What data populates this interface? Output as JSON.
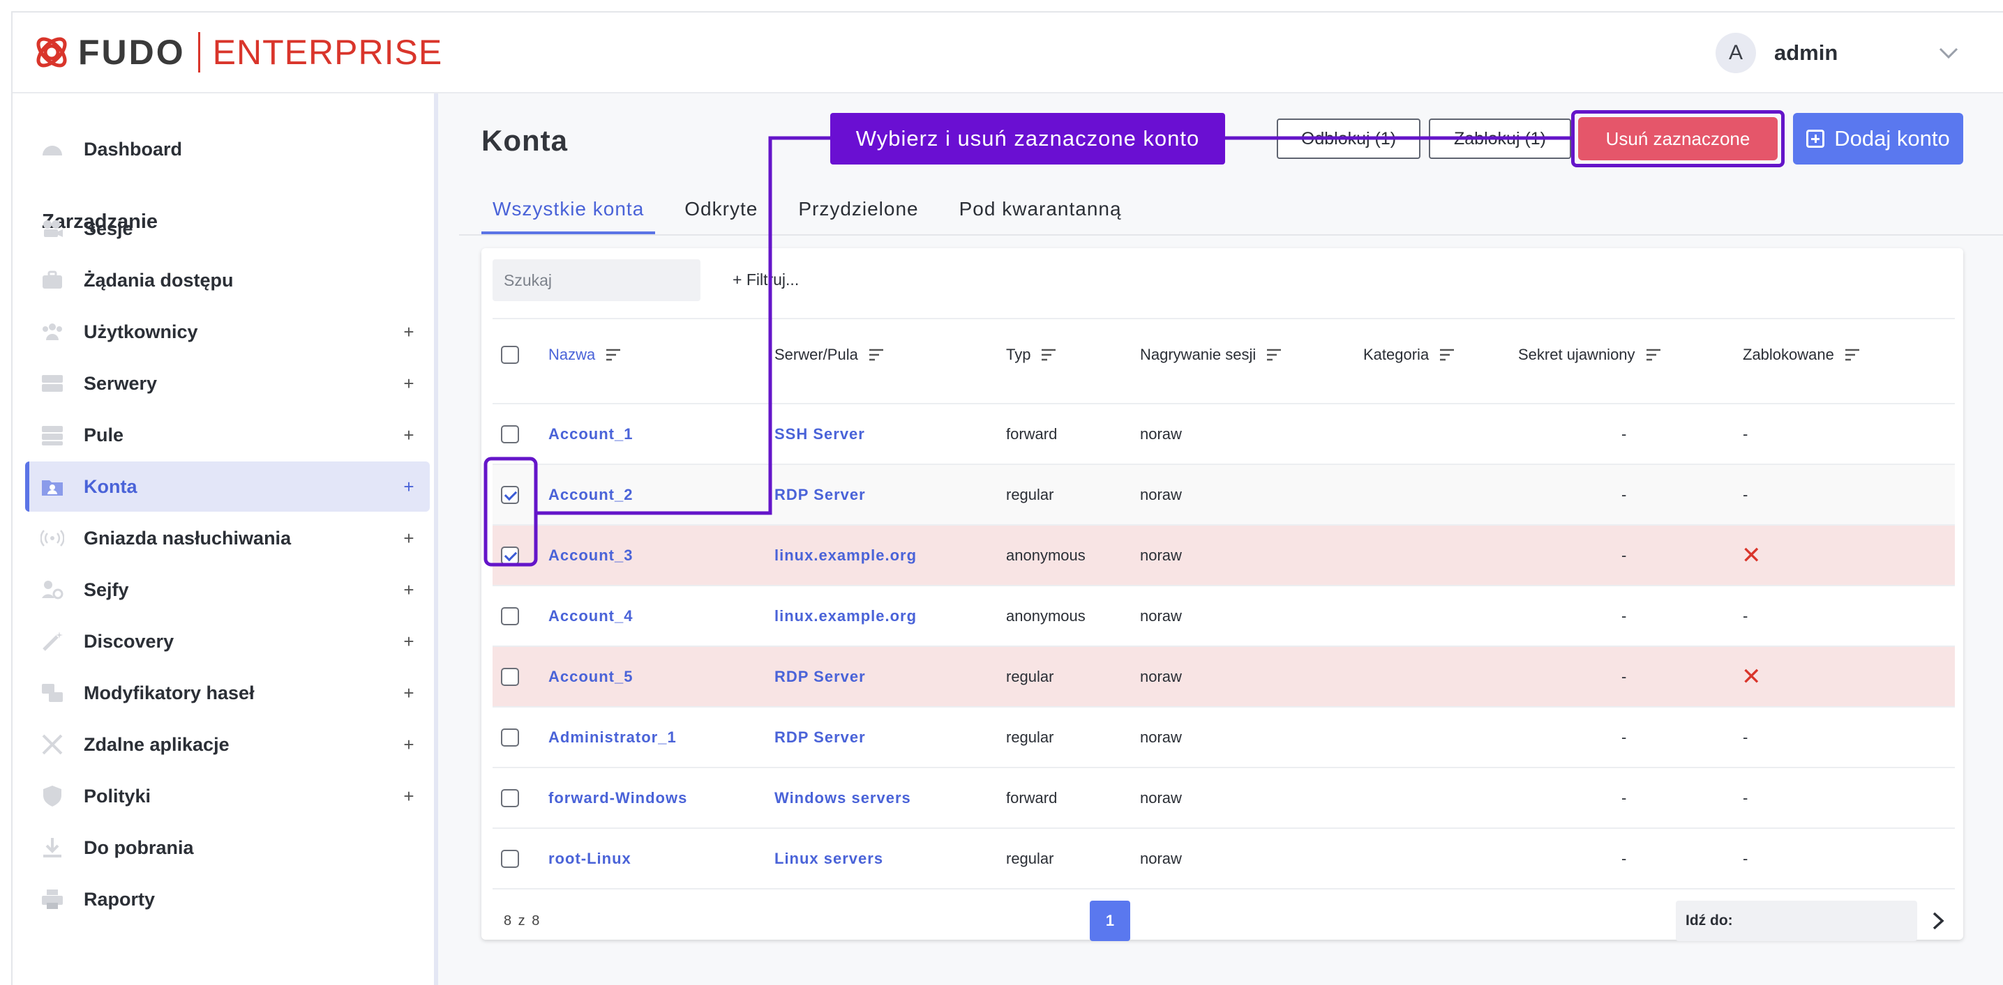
{
  "header": {
    "logo_brand": "FUDO",
    "logo_edition": "ENTERPRISE",
    "user_initial": "A",
    "username": "admin"
  },
  "sidebar": {
    "dashboard": "Dashboard",
    "section_title": "Zarządzanie",
    "items": [
      {
        "label": "Sesje",
        "icon": "camera-icon",
        "plus": ""
      },
      {
        "label": "Żądania dostępu",
        "icon": "briefcase-icon",
        "plus": ""
      },
      {
        "label": "Użytkownicy",
        "icon": "users-icon",
        "plus": "+"
      },
      {
        "label": "Serwery",
        "icon": "server-icon",
        "plus": "+"
      },
      {
        "label": "Pule",
        "icon": "pool-icon",
        "plus": "+"
      },
      {
        "label": "Konta",
        "icon": "account-folder-icon",
        "plus": "+",
        "active": true
      },
      {
        "label": "Gniazda nasłuchiwania",
        "icon": "broadcast-icon",
        "plus": "+"
      },
      {
        "label": "Sejfy",
        "icon": "safe-icon",
        "plus": "+"
      },
      {
        "label": "Discovery",
        "icon": "wand-icon",
        "plus": "+"
      },
      {
        "label": "Modyfikatory haseł",
        "icon": "password-modifier-icon",
        "plus": "+"
      },
      {
        "label": "Zdalne aplikacje",
        "icon": "remote-app-icon",
        "plus": "+"
      },
      {
        "label": "Polityki",
        "icon": "shield-icon",
        "plus": "+"
      },
      {
        "label": "Do pobrania",
        "icon": "download-icon",
        "plus": ""
      },
      {
        "label": "Raporty",
        "icon": "printer-icon",
        "plus": ""
      }
    ]
  },
  "main": {
    "title": "Konta",
    "buttons": {
      "unlock": "Odblokuj (1)",
      "lock": "Zablokuj (1)",
      "delete": "Usuń zaznaczone",
      "add": "Dodaj konto"
    },
    "callout": "Wybierz i usuń zaznaczone konto",
    "tabs": [
      "Wszystkie konta",
      "Odkryte",
      "Przydzielone",
      "Pod kwarantanną"
    ],
    "search_placeholder": "Szukaj",
    "filter_label": "+ Filtruj...",
    "columns": [
      "Nazwa",
      "Serwer/Pula",
      "Typ",
      "Nagrywanie sesji",
      "Kategoria",
      "Sekret ujawniony",
      "Zablokowane"
    ],
    "rows": [
      {
        "name": "Account_1",
        "server": "SSH Server",
        "type": "forward",
        "recording": "noraw",
        "category": "",
        "secret": "-",
        "locked": "-",
        "is_locked": false,
        "checked": false
      },
      {
        "name": "Account_2",
        "server": "RDP Server",
        "type": "regular",
        "recording": "noraw",
        "category": "",
        "secret": "-",
        "locked": "-",
        "is_locked": false,
        "checked": true
      },
      {
        "name": "Account_3",
        "server": "linux.example.org",
        "type": "anonymous",
        "recording": "noraw",
        "category": "",
        "secret": "-",
        "locked": "✕",
        "is_locked": true,
        "checked": true
      },
      {
        "name": "Account_4",
        "server": "linux.example.org",
        "type": "anonymous",
        "recording": "noraw",
        "category": "",
        "secret": "-",
        "locked": "-",
        "is_locked": false,
        "checked": false
      },
      {
        "name": "Account_5",
        "server": "RDP Server",
        "type": "regular",
        "recording": "noraw",
        "category": "",
        "secret": "-",
        "locked": "✕",
        "is_locked": true,
        "checked": false
      },
      {
        "name": "Administrator_1",
        "server": "RDP Server",
        "type": "regular",
        "recording": "noraw",
        "category": "",
        "secret": "-",
        "locked": "-",
        "is_locked": false,
        "checked": false
      },
      {
        "name": "forward-Windows",
        "server": "Windows servers",
        "type": "forward",
        "recording": "noraw",
        "category": "",
        "secret": "-",
        "locked": "-",
        "is_locked": false,
        "checked": false
      },
      {
        "name": "root-Linux",
        "server": "Linux servers",
        "type": "regular",
        "recording": "noraw",
        "category": "",
        "secret": "-",
        "locked": "-",
        "is_locked": false,
        "checked": false
      }
    ],
    "footer": {
      "count": "8 z 8",
      "page": "1",
      "goto_label": "Idź do:"
    }
  },
  "colors": {
    "accent": "#5a78ef",
    "danger": "#e5566a",
    "highlight": "#6a0fd2",
    "brand_red": "#d9352b"
  }
}
